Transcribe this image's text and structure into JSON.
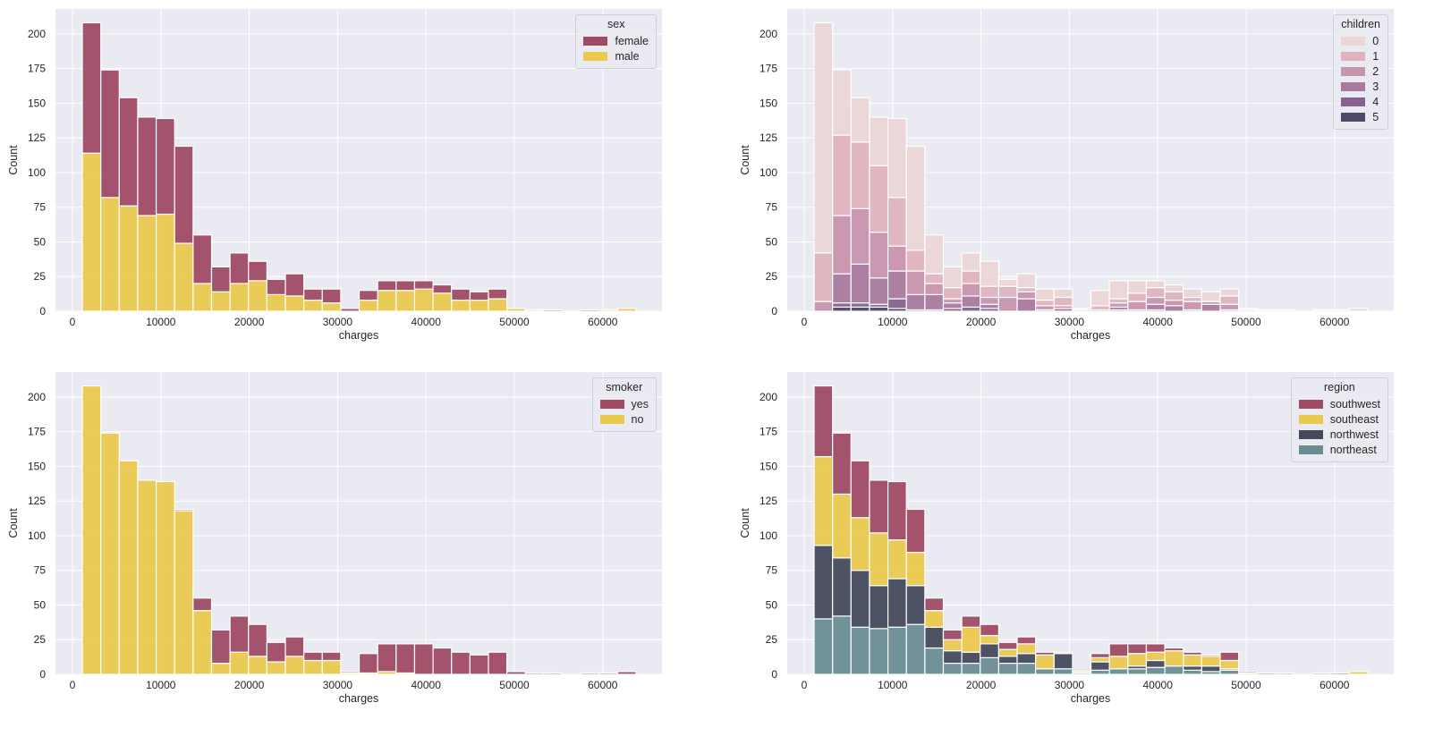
{
  "chart_data": [
    {
      "type": "bar",
      "stacked": true,
      "xlabel": "charges",
      "ylabel": "Count",
      "legend_title": "sex",
      "legend_position": "top-right",
      "bin_range": [
        1121.87,
        63770.43
      ],
      "bins": 30,
      "xlim": [
        -1920,
        66700
      ],
      "ylim": [
        0,
        218
      ],
      "grid": true,
      "xticks": [
        "0",
        "10000",
        "20000",
        "30000",
        "40000",
        "50000",
        "60000"
      ],
      "yticks": [
        "0",
        "25",
        "50",
        "75",
        "100",
        "125",
        "150",
        "175",
        "200"
      ],
      "series": [
        {
          "name": "female",
          "color": "#a04b64",
          "values": [
            94,
            92,
            78,
            71,
            69,
            70,
            35,
            18,
            22,
            14,
            11,
            16,
            8,
            10,
            2,
            7,
            7,
            7,
            6,
            6,
            8,
            6,
            7,
            0,
            0,
            1,
            0,
            1,
            0,
            0
          ]
        },
        {
          "name": "male",
          "color": "#ebc94f",
          "values": [
            114,
            82,
            76,
            69,
            70,
            49,
            20,
            14,
            20,
            22,
            12,
            11,
            8,
            6,
            0,
            8,
            15,
            15,
            16,
            13,
            8,
            8,
            9,
            2,
            1,
            0,
            0,
            0,
            1,
            2
          ]
        }
      ]
    },
    {
      "type": "bar",
      "stacked": true,
      "xlabel": "charges",
      "ylabel": "Count",
      "legend_title": "children",
      "legend_position": "top-right",
      "bin_range": [
        1121.87,
        63770.43
      ],
      "bins": 30,
      "xlim": [
        -1920,
        66700
      ],
      "ylim": [
        0,
        218
      ],
      "grid": true,
      "xticks": [
        "0",
        "10000",
        "20000",
        "30000",
        "40000",
        "50000",
        "60000"
      ],
      "yticks": [
        "0",
        "25",
        "50",
        "75",
        "100",
        "125",
        "150",
        "175",
        "200"
      ],
      "series": [
        {
          "name": "0",
          "color": "#ebd6d6",
          "values": [
            166,
            47,
            32,
            35,
            57,
            75,
            28,
            15,
            13,
            18,
            5,
            10,
            8,
            6,
            1,
            11,
            13,
            9,
            5,
            5,
            6,
            7,
            5,
            1,
            1,
            1,
            0,
            1,
            1,
            2
          ]
        },
        {
          "name": "1",
          "color": "#dfb3be",
          "values": [
            35,
            58,
            48,
            48,
            35,
            15,
            7,
            8,
            9,
            8,
            8,
            3,
            4,
            6,
            1,
            3,
            3,
            6,
            7,
            6,
            3,
            0,
            6,
            1,
            0,
            0,
            0,
            0,
            0,
            0
          ]
        },
        {
          "name": "2",
          "color": "#c893ad",
          "values": [
            7,
            42,
            40,
            33,
            18,
            17,
            8,
            3,
            9,
            5,
            10,
            5,
            3,
            2,
            0,
            1,
            3,
            6,
            5,
            4,
            6,
            2,
            4,
            0,
            0,
            0,
            0,
            0,
            0,
            0
          ]
        },
        {
          "name": "3",
          "color": "#a87a9e",
          "values": [
            0,
            21,
            28,
            19,
            20,
            11,
            11,
            4,
            8,
            3,
            0,
            9,
            1,
            2,
            0,
            0,
            2,
            1,
            4,
            4,
            1,
            5,
            1,
            0,
            0,
            0,
            0,
            0,
            0,
            0
          ]
        },
        {
          "name": "4",
          "color": "#87628f",
          "values": [
            0,
            3,
            3,
            2,
            7,
            1,
            1,
            2,
            3,
            2,
            0,
            0,
            0,
            0,
            0,
            0,
            1,
            0,
            1,
            0,
            0,
            0,
            0,
            0,
            0,
            0,
            0,
            0,
            0,
            0
          ]
        },
        {
          "name": "5",
          "color": "#504a66",
          "values": [
            0,
            3,
            3,
            3,
            2,
            0,
            0,
            0,
            0,
            0,
            0,
            0,
            0,
            0,
            0,
            0,
            0,
            0,
            0,
            0,
            0,
            0,
            0,
            0,
            0,
            0,
            0,
            0,
            0,
            0
          ]
        }
      ]
    },
    {
      "type": "bar",
      "stacked": true,
      "xlabel": "charges",
      "ylabel": "Count",
      "legend_title": "smoker",
      "legend_position": "top-right",
      "bin_range": [
        1121.87,
        63770.43
      ],
      "bins": 30,
      "xlim": [
        -1920,
        66700
      ],
      "ylim": [
        0,
        218
      ],
      "grid": true,
      "xticks": [
        "0",
        "10000",
        "20000",
        "30000",
        "40000",
        "50000",
        "60000"
      ],
      "yticks": [
        "0",
        "25",
        "50",
        "75",
        "100",
        "125",
        "150",
        "175",
        "200"
      ],
      "series": [
        {
          "name": "yes",
          "color": "#a04b64",
          "values": [
            0,
            0,
            0,
            0,
            0,
            1,
            9,
            24,
            26,
            23,
            14,
            14,
            6,
            6,
            1,
            14,
            20,
            21,
            22,
            19,
            16,
            14,
            16,
            2,
            1,
            1,
            0,
            1,
            1,
            2
          ]
        },
        {
          "name": "no",
          "color": "#ebc94f",
          "values": [
            208,
            174,
            154,
            140,
            139,
            118,
            46,
            8,
            16,
            13,
            9,
            13,
            10,
            10,
            1,
            1,
            2,
            1,
            0,
            0,
            0,
            0,
            0,
            0,
            0,
            0,
            0,
            0,
            0,
            0
          ]
        }
      ]
    },
    {
      "type": "bar",
      "stacked": true,
      "xlabel": "charges",
      "ylabel": "Count",
      "legend_title": "region",
      "legend_position": "top-right",
      "bin_range": [
        1121.87,
        63770.43
      ],
      "bins": 30,
      "xlim": [
        -1920,
        66700
      ],
      "ylim": [
        0,
        218
      ],
      "grid": true,
      "xticks": [
        "0",
        "10000",
        "20000",
        "30000",
        "40000",
        "50000",
        "60000"
      ],
      "yticks": [
        "0",
        "25",
        "50",
        "75",
        "100",
        "125",
        "150",
        "175",
        "200"
      ],
      "series": [
        {
          "name": "southwest",
          "color": "#a04b64",
          "values": [
            51,
            44,
            41,
            38,
            42,
            31,
            9,
            7,
            8,
            8,
            5,
            5,
            2,
            0,
            0,
            3,
            9,
            7,
            6,
            2,
            2,
            1,
            6,
            1,
            1,
            0,
            0,
            0,
            0,
            0
          ]
        },
        {
          "name": "southeast",
          "color": "#ebc94f",
          "values": [
            64,
            46,
            38,
            38,
            28,
            24,
            12,
            8,
            18,
            6,
            5,
            7,
            10,
            1,
            1,
            3,
            9,
            9,
            6,
            11,
            8,
            7,
            6,
            1,
            0,
            0,
            0,
            0,
            0,
            2
          ]
        },
        {
          "name": "northwest",
          "color": "#444a5c",
          "values": [
            53,
            42,
            41,
            31,
            35,
            28,
            15,
            9,
            8,
            10,
            5,
            7,
            0,
            11,
            0,
            6,
            0,
            2,
            5,
            0,
            3,
            4,
            1,
            0,
            0,
            0,
            0,
            0,
            1,
            0
          ]
        },
        {
          "name": "northeast",
          "color": "#6a8d92",
          "values": [
            40,
            42,
            34,
            33,
            34,
            36,
            19,
            8,
            8,
            12,
            8,
            8,
            4,
            4,
            1,
            3,
            4,
            4,
            5,
            6,
            3,
            2,
            3,
            0,
            0,
            1,
            0,
            1,
            0,
            0
          ]
        }
      ]
    }
  ]
}
